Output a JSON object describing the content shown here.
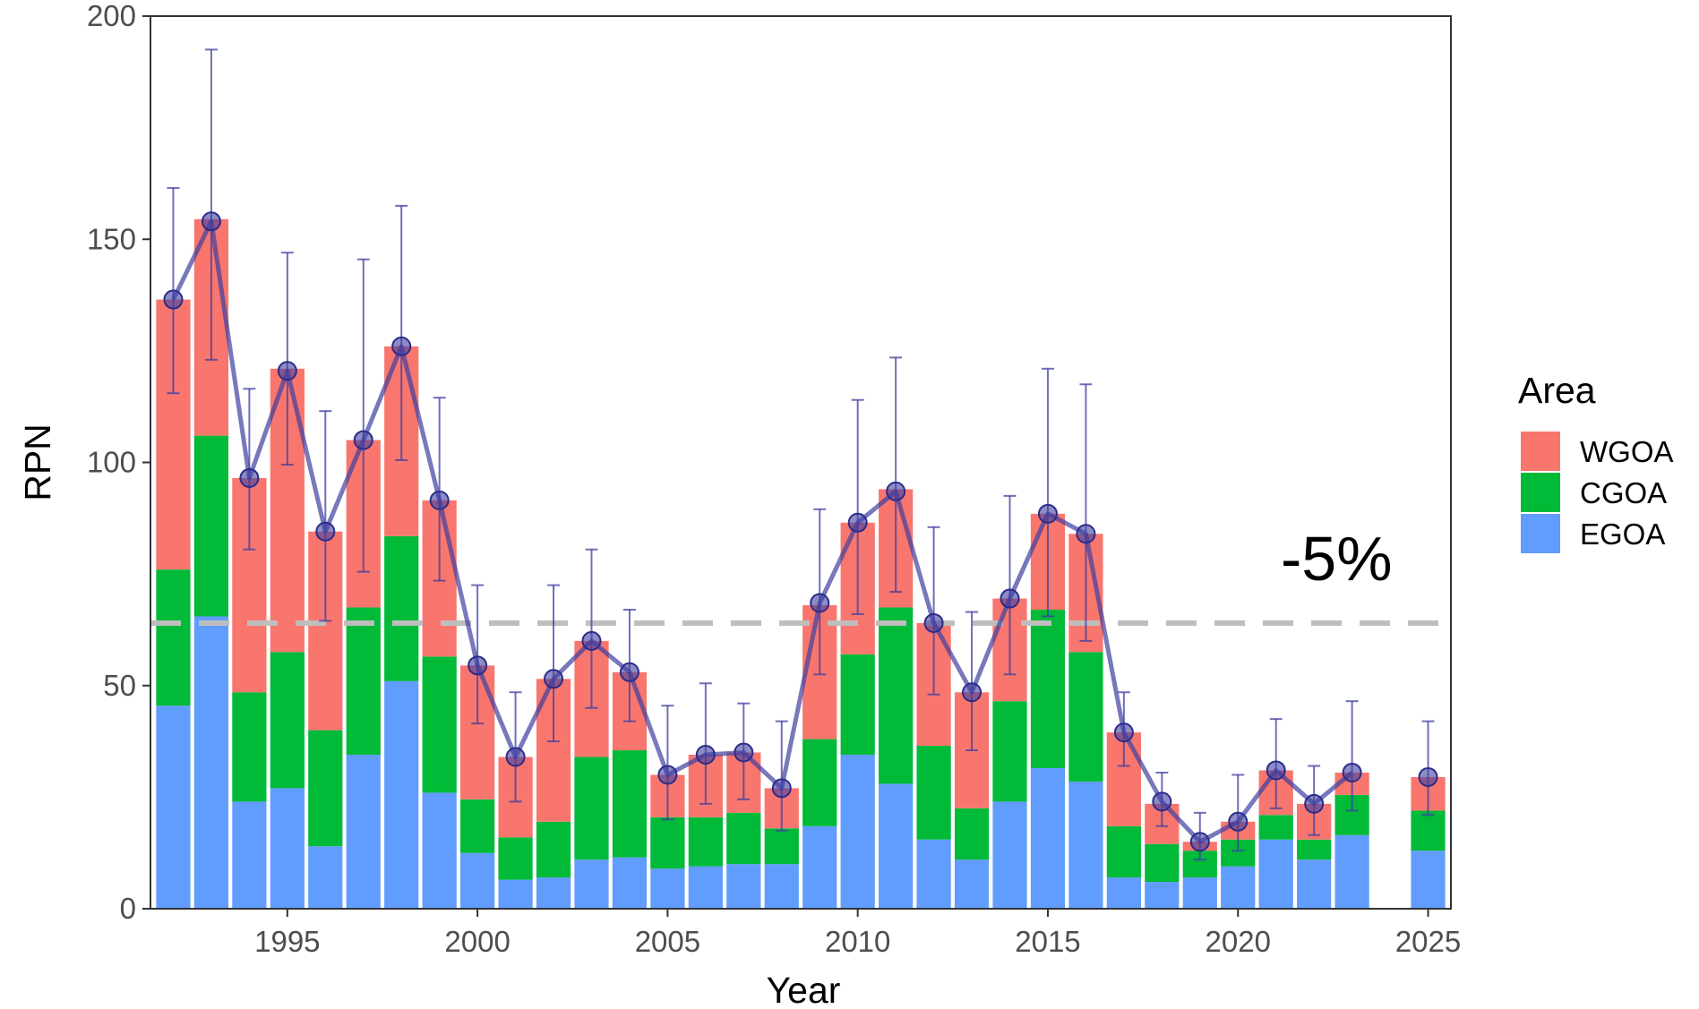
{
  "chart_data": {
    "type": "bar",
    "stacked": true,
    "xlabel": "Year",
    "ylabel": "RPN",
    "xlim": [
      1991.4,
      2025.6
    ],
    "ylim": [
      0,
      200
    ],
    "x_ticks": [
      1995,
      2000,
      2005,
      2010,
      2015,
      2020,
      2025
    ],
    "y_ticks": [
      0,
      50,
      100,
      150,
      200
    ],
    "grid": false,
    "legend": {
      "title": "Area",
      "placement": "right",
      "entries": [
        {
          "name": "WGOA",
          "color": "#F8766D"
        },
        {
          "name": "CGOA",
          "color": "#00BA38"
        },
        {
          "name": "EGOA",
          "color": "#619CFF"
        }
      ]
    },
    "categories": [
      1992,
      1993,
      1994,
      1995,
      1996,
      1997,
      1998,
      1999,
      2000,
      2001,
      2002,
      2003,
      2004,
      2005,
      2006,
      2007,
      2008,
      2009,
      2010,
      2011,
      2012,
      2013,
      2014,
      2015,
      2016,
      2017,
      2018,
      2019,
      2020,
      2021,
      2022,
      2023,
      2025
    ],
    "series": [
      {
        "name": "EGOA",
        "color": "#619CFF",
        "values": [
          45.5,
          65.5,
          24,
          27,
          14,
          34.5,
          51,
          26,
          12.5,
          6.5,
          7,
          11,
          11.5,
          9,
          9.5,
          10,
          10,
          18.5,
          34.5,
          28,
          15.5,
          11,
          24,
          31.5,
          28.5,
          7,
          6,
          7,
          9.5,
          15.5,
          11,
          16.5,
          13
        ]
      },
      {
        "name": "CGOA",
        "color": "#00BA38",
        "values": [
          30.5,
          40.5,
          24.5,
          30.5,
          26,
          33,
          32.5,
          30.5,
          12,
          9.5,
          12.5,
          23,
          24,
          11.5,
          11,
          11.5,
          8,
          19.5,
          22.5,
          39.5,
          21,
          11.5,
          22.5,
          35.5,
          29,
          11.5,
          8.5,
          6,
          6,
          5.5,
          4.5,
          9,
          9
        ]
      },
      {
        "name": "WGOA",
        "color": "#F8766D",
        "values": [
          60.5,
          48.5,
          48,
          63.5,
          44.5,
          37.5,
          42.5,
          35,
          30,
          18,
          32,
          26,
          17.5,
          9.5,
          14,
          13.5,
          9,
          30,
          29.5,
          26.5,
          27.5,
          26,
          23,
          21.5,
          26.5,
          21,
          9,
          2,
          4,
          10,
          8,
          5,
          7.5
        ]
      }
    ],
    "line": {
      "name": "RPN",
      "color": "#3F3FA0",
      "values": [
        136.5,
        154,
        96.5,
        120.5,
        84.5,
        105,
        126,
        91.5,
        54.5,
        34,
        51.5,
        60,
        53,
        30,
        34.5,
        35,
        27,
        68.5,
        86.5,
        93.5,
        64,
        48.5,
        69.5,
        88.5,
        84,
        39.5,
        24,
        15,
        19.5,
        31,
        23.5,
        30.5,
        29.5
      ],
      "error_low": [
        115.5,
        123,
        80.5,
        99.5,
        64.5,
        75.5,
        100.5,
        73.5,
        41.5,
        24,
        37.5,
        45,
        42,
        20,
        23.5,
        24.5,
        17.5,
        52.5,
        66,
        71,
        48,
        35.5,
        52.5,
        65.5,
        60,
        32,
        18.5,
        11,
        13,
        22.5,
        16.5,
        22,
        21
      ],
      "error_high": [
        161.5,
        192.5,
        116.5,
        147,
        111.5,
        145.5,
        157.5,
        114.5,
        72.5,
        48.5,
        72.5,
        80.5,
        67,
        45.5,
        50.5,
        46,
        42,
        89.5,
        114,
        123.5,
        85.5,
        66.5,
        92.5,
        121,
        117.5,
        48.5,
        30.5,
        21.5,
        30,
        42.5,
        32,
        46.5,
        42
      ]
    },
    "reference_line": {
      "value": 64,
      "style": "dashed",
      "color": "#BEBEBE"
    },
    "annotation": "-5%"
  }
}
